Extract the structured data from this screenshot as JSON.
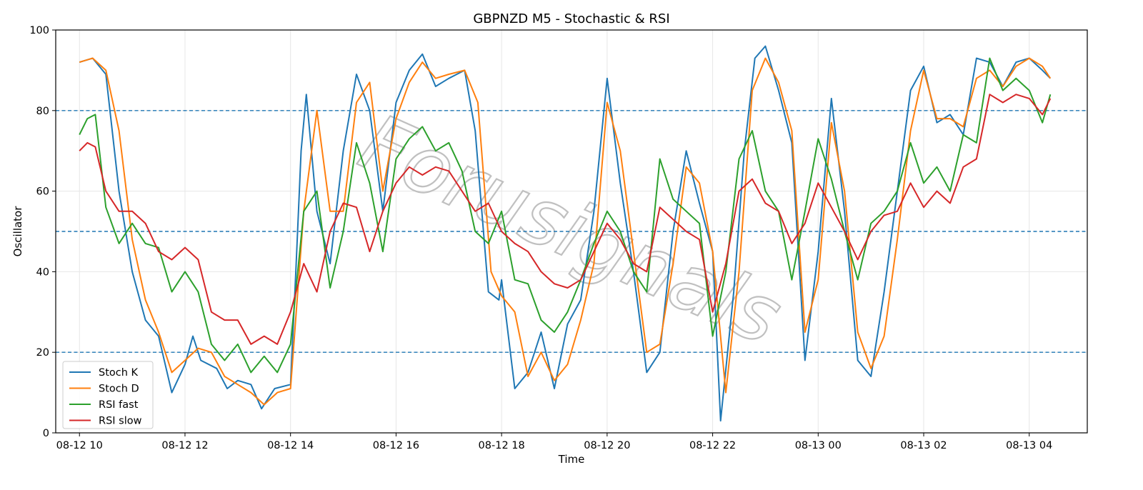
{
  "chart_data": {
    "type": "line",
    "title": "GBPNZD M5 - Stochastic & RSI",
    "xlabel": "Time",
    "ylabel": "Oscillator",
    "ylim": [
      0,
      100
    ],
    "yticks": [
      0,
      20,
      40,
      60,
      80,
      100
    ],
    "xlim": [
      -0.45,
      19.1
    ],
    "xticks": [
      {
        "t": 0,
        "label": "08-12 10"
      },
      {
        "t": 2,
        "label": "08-12 12"
      },
      {
        "t": 4,
        "label": "08-12 14"
      },
      {
        "t": 6,
        "label": "08-12 16"
      },
      {
        "t": 8,
        "label": "08-12 18"
      },
      {
        "t": 10,
        "label": "08-12 20"
      },
      {
        "t": 12,
        "label": "08-12 22"
      },
      {
        "t": 14,
        "label": "08-13 00"
      },
      {
        "t": 16,
        "label": "08-13 02"
      },
      {
        "t": 18,
        "label": "08-13 04"
      }
    ],
    "x_unit": "hours from 08-12 10:00",
    "reference_lines": [
      20,
      50,
      80
    ],
    "grid": true,
    "legend_position": "lower-left",
    "watermark": "Forusignals",
    "colors": {
      "stoch_k": "#1f77b4",
      "stoch_d": "#ff7f0e",
      "rsi_fast": "#2ca02c",
      "rsi_slow": "#d62728",
      "reference": "#1f77b4",
      "grid": "#e6e6e6"
    },
    "series": [
      {
        "name": "Stoch K",
        "color": "#1f77b4",
        "points": [
          [
            0,
            92
          ],
          [
            0.25,
            93
          ],
          [
            0.5,
            89
          ],
          [
            0.75,
            60
          ],
          [
            1,
            40
          ],
          [
            1.25,
            28
          ],
          [
            1.5,
            24
          ],
          [
            1.75,
            10
          ],
          [
            2,
            17
          ],
          [
            2.15,
            24
          ],
          [
            2.3,
            18
          ],
          [
            2.6,
            16
          ],
          [
            2.8,
            11
          ],
          [
            3,
            13
          ],
          [
            3.25,
            12
          ],
          [
            3.45,
            6
          ],
          [
            3.7,
            11
          ],
          [
            4,
            12
          ],
          [
            4.1,
            40
          ],
          [
            4.2,
            70
          ],
          [
            4.3,
            84
          ],
          [
            4.5,
            55
          ],
          [
            4.75,
            42
          ],
          [
            5,
            70
          ],
          [
            5.25,
            89
          ],
          [
            5.5,
            80
          ],
          [
            5.75,
            55
          ],
          [
            6,
            82
          ],
          [
            6.25,
            90
          ],
          [
            6.5,
            94
          ],
          [
            6.75,
            86
          ],
          [
            7,
            88
          ],
          [
            7.3,
            90
          ],
          [
            7.5,
            75
          ],
          [
            7.75,
            35
          ],
          [
            7.95,
            33
          ],
          [
            8,
            38
          ],
          [
            8.25,
            11
          ],
          [
            8.5,
            15
          ],
          [
            8.75,
            25
          ],
          [
            9,
            11
          ],
          [
            9.25,
            27
          ],
          [
            9.5,
            33
          ],
          [
            9.75,
            55
          ],
          [
            10,
            88
          ],
          [
            10.25,
            62
          ],
          [
            10.5,
            40
          ],
          [
            10.75,
            15
          ],
          [
            11,
            20
          ],
          [
            11.25,
            50
          ],
          [
            11.5,
            70
          ],
          [
            11.75,
            57
          ],
          [
            12,
            45
          ],
          [
            12.15,
            3
          ],
          [
            12.4,
            35
          ],
          [
            12.6,
            70
          ],
          [
            12.8,
            93
          ],
          [
            13,
            96
          ],
          [
            13.25,
            85
          ],
          [
            13.5,
            72
          ],
          [
            13.75,
            18
          ],
          [
            14,
            45
          ],
          [
            14.25,
            83
          ],
          [
            14.5,
            55
          ],
          [
            14.75,
            18
          ],
          [
            15,
            14
          ],
          [
            15.25,
            35
          ],
          [
            15.5,
            60
          ],
          [
            15.75,
            85
          ],
          [
            16,
            91
          ],
          [
            16.25,
            77
          ],
          [
            16.5,
            79
          ],
          [
            16.75,
            74
          ],
          [
            17,
            93
          ],
          [
            17.25,
            92
          ],
          [
            17.5,
            86
          ],
          [
            17.75,
            92
          ],
          [
            18,
            93
          ],
          [
            18.25,
            90
          ],
          [
            18.4,
            88
          ]
        ]
      },
      {
        "name": "Stoch D",
        "color": "#ff7f0e",
        "points": [
          [
            0,
            92
          ],
          [
            0.25,
            93
          ],
          [
            0.5,
            90
          ],
          [
            0.75,
            75
          ],
          [
            1,
            48
          ],
          [
            1.25,
            33
          ],
          [
            1.5,
            25
          ],
          [
            1.75,
            15
          ],
          [
            2,
            18
          ],
          [
            2.25,
            21
          ],
          [
            2.5,
            20
          ],
          [
            2.75,
            14
          ],
          [
            3,
            12
          ],
          [
            3.25,
            10
          ],
          [
            3.5,
            7
          ],
          [
            3.75,
            10
          ],
          [
            4,
            11
          ],
          [
            4.25,
            55
          ],
          [
            4.5,
            80
          ],
          [
            4.75,
            55
          ],
          [
            5,
            55
          ],
          [
            5.25,
            82
          ],
          [
            5.5,
            87
          ],
          [
            5.75,
            60
          ],
          [
            6,
            78
          ],
          [
            6.25,
            87
          ],
          [
            6.5,
            92
          ],
          [
            6.75,
            88
          ],
          [
            7,
            89
          ],
          [
            7.3,
            90
          ],
          [
            7.55,
            82
          ],
          [
            7.8,
            40
          ],
          [
            8,
            34
          ],
          [
            8.25,
            30
          ],
          [
            8.5,
            14
          ],
          [
            8.75,
            20
          ],
          [
            9,
            13
          ],
          [
            9.25,
            17
          ],
          [
            9.5,
            28
          ],
          [
            9.75,
            42
          ],
          [
            10,
            82
          ],
          [
            10.25,
            70
          ],
          [
            10.5,
            45
          ],
          [
            10.75,
            20
          ],
          [
            11,
            22
          ],
          [
            11.25,
            42
          ],
          [
            11.5,
            66
          ],
          [
            11.75,
            62
          ],
          [
            12,
            45
          ],
          [
            12.25,
            10
          ],
          [
            12.5,
            40
          ],
          [
            12.75,
            85
          ],
          [
            13,
            93
          ],
          [
            13.25,
            87
          ],
          [
            13.5,
            75
          ],
          [
            13.75,
            25
          ],
          [
            14,
            38
          ],
          [
            14.25,
            77
          ],
          [
            14.5,
            60
          ],
          [
            14.75,
            25
          ],
          [
            15,
            16
          ],
          [
            15.25,
            24
          ],
          [
            15.5,
            48
          ],
          [
            15.75,
            75
          ],
          [
            16,
            90
          ],
          [
            16.25,
            78
          ],
          [
            16.5,
            78
          ],
          [
            16.75,
            76
          ],
          [
            17,
            88
          ],
          [
            17.25,
            90
          ],
          [
            17.5,
            86
          ],
          [
            17.75,
            91
          ],
          [
            18,
            93
          ],
          [
            18.25,
            91
          ],
          [
            18.4,
            88
          ]
        ]
      },
      {
        "name": "RSI fast",
        "color": "#2ca02c",
        "points": [
          [
            0,
            74
          ],
          [
            0.15,
            78
          ],
          [
            0.3,
            79
          ],
          [
            0.5,
            56
          ],
          [
            0.75,
            47
          ],
          [
            1,
            52
          ],
          [
            1.25,
            47
          ],
          [
            1.5,
            46
          ],
          [
            1.75,
            35
          ],
          [
            2,
            40
          ],
          [
            2.25,
            35
          ],
          [
            2.5,
            22
          ],
          [
            2.75,
            18
          ],
          [
            3,
            22
          ],
          [
            3.25,
            15
          ],
          [
            3.5,
            19
          ],
          [
            3.75,
            15
          ],
          [
            4,
            22
          ],
          [
            4.25,
            55
          ],
          [
            4.5,
            60
          ],
          [
            4.75,
            36
          ],
          [
            5,
            50
          ],
          [
            5.25,
            72
          ],
          [
            5.5,
            62
          ],
          [
            5.75,
            45
          ],
          [
            6,
            68
          ],
          [
            6.25,
            73
          ],
          [
            6.5,
            76
          ],
          [
            6.75,
            70
          ],
          [
            7,
            72
          ],
          [
            7.25,
            65
          ],
          [
            7.5,
            50
          ],
          [
            7.75,
            47
          ],
          [
            8,
            55
          ],
          [
            8.25,
            38
          ],
          [
            8.5,
            37
          ],
          [
            8.75,
            28
          ],
          [
            9,
            25
          ],
          [
            9.25,
            30
          ],
          [
            9.5,
            38
          ],
          [
            9.75,
            47
          ],
          [
            10,
            55
          ],
          [
            10.25,
            50
          ],
          [
            10.5,
            40
          ],
          [
            10.75,
            35
          ],
          [
            11,
            68
          ],
          [
            11.25,
            58
          ],
          [
            11.5,
            55
          ],
          [
            11.75,
            52
          ],
          [
            12,
            24
          ],
          [
            12.25,
            40
          ],
          [
            12.5,
            68
          ],
          [
            12.75,
            75
          ],
          [
            13,
            60
          ],
          [
            13.25,
            55
          ],
          [
            13.5,
            38
          ],
          [
            13.75,
            55
          ],
          [
            14,
            73
          ],
          [
            14.25,
            63
          ],
          [
            14.5,
            50
          ],
          [
            14.75,
            38
          ],
          [
            15,
            52
          ],
          [
            15.25,
            55
          ],
          [
            15.5,
            60
          ],
          [
            15.75,
            72
          ],
          [
            16,
            62
          ],
          [
            16.25,
            66
          ],
          [
            16.5,
            60
          ],
          [
            16.75,
            74
          ],
          [
            17,
            72
          ],
          [
            17.25,
            93
          ],
          [
            17.5,
            85
          ],
          [
            17.75,
            88
          ],
          [
            18,
            85
          ],
          [
            18.25,
            77
          ],
          [
            18.4,
            84
          ]
        ]
      },
      {
        "name": "RSI slow",
        "color": "#d62728",
        "points": [
          [
            0,
            70
          ],
          [
            0.15,
            72
          ],
          [
            0.3,
            71
          ],
          [
            0.5,
            60
          ],
          [
            0.75,
            55
          ],
          [
            1,
            55
          ],
          [
            1.25,
            52
          ],
          [
            1.5,
            45
          ],
          [
            1.75,
            43
          ],
          [
            2,
            46
          ],
          [
            2.25,
            43
          ],
          [
            2.5,
            30
          ],
          [
            2.75,
            28
          ],
          [
            3,
            28
          ],
          [
            3.25,
            22
          ],
          [
            3.5,
            24
          ],
          [
            3.75,
            22
          ],
          [
            4,
            30
          ],
          [
            4.25,
            42
          ],
          [
            4.5,
            35
          ],
          [
            4.75,
            50
          ],
          [
            5,
            57
          ],
          [
            5.25,
            56
          ],
          [
            5.5,
            45
          ],
          [
            5.75,
            55
          ],
          [
            6,
            62
          ],
          [
            6.25,
            66
          ],
          [
            6.5,
            64
          ],
          [
            6.75,
            66
          ],
          [
            7,
            65
          ],
          [
            7.25,
            60
          ],
          [
            7.5,
            55
          ],
          [
            7.75,
            57
          ],
          [
            8,
            50
          ],
          [
            8.25,
            47
          ],
          [
            8.5,
            45
          ],
          [
            8.75,
            40
          ],
          [
            9,
            37
          ],
          [
            9.25,
            36
          ],
          [
            9.5,
            38
          ],
          [
            9.75,
            45
          ],
          [
            10,
            52
          ],
          [
            10.25,
            48
          ],
          [
            10.5,
            42
          ],
          [
            10.75,
            40
          ],
          [
            11,
            56
          ],
          [
            11.25,
            53
          ],
          [
            11.5,
            50
          ],
          [
            11.75,
            48
          ],
          [
            12,
            30
          ],
          [
            12.25,
            42
          ],
          [
            12.5,
            60
          ],
          [
            12.75,
            63
          ],
          [
            13,
            57
          ],
          [
            13.25,
            55
          ],
          [
            13.5,
            47
          ],
          [
            13.75,
            52
          ],
          [
            14,
            62
          ],
          [
            14.25,
            56
          ],
          [
            14.5,
            50
          ],
          [
            14.75,
            43
          ],
          [
            15,
            50
          ],
          [
            15.25,
            54
          ],
          [
            15.5,
            55
          ],
          [
            15.75,
            62
          ],
          [
            16,
            56
          ],
          [
            16.25,
            60
          ],
          [
            16.5,
            57
          ],
          [
            16.75,
            66
          ],
          [
            17,
            68
          ],
          [
            17.25,
            84
          ],
          [
            17.5,
            82
          ],
          [
            17.75,
            84
          ],
          [
            18,
            83
          ],
          [
            18.25,
            79
          ],
          [
            18.4,
            83
          ]
        ]
      }
    ]
  }
}
